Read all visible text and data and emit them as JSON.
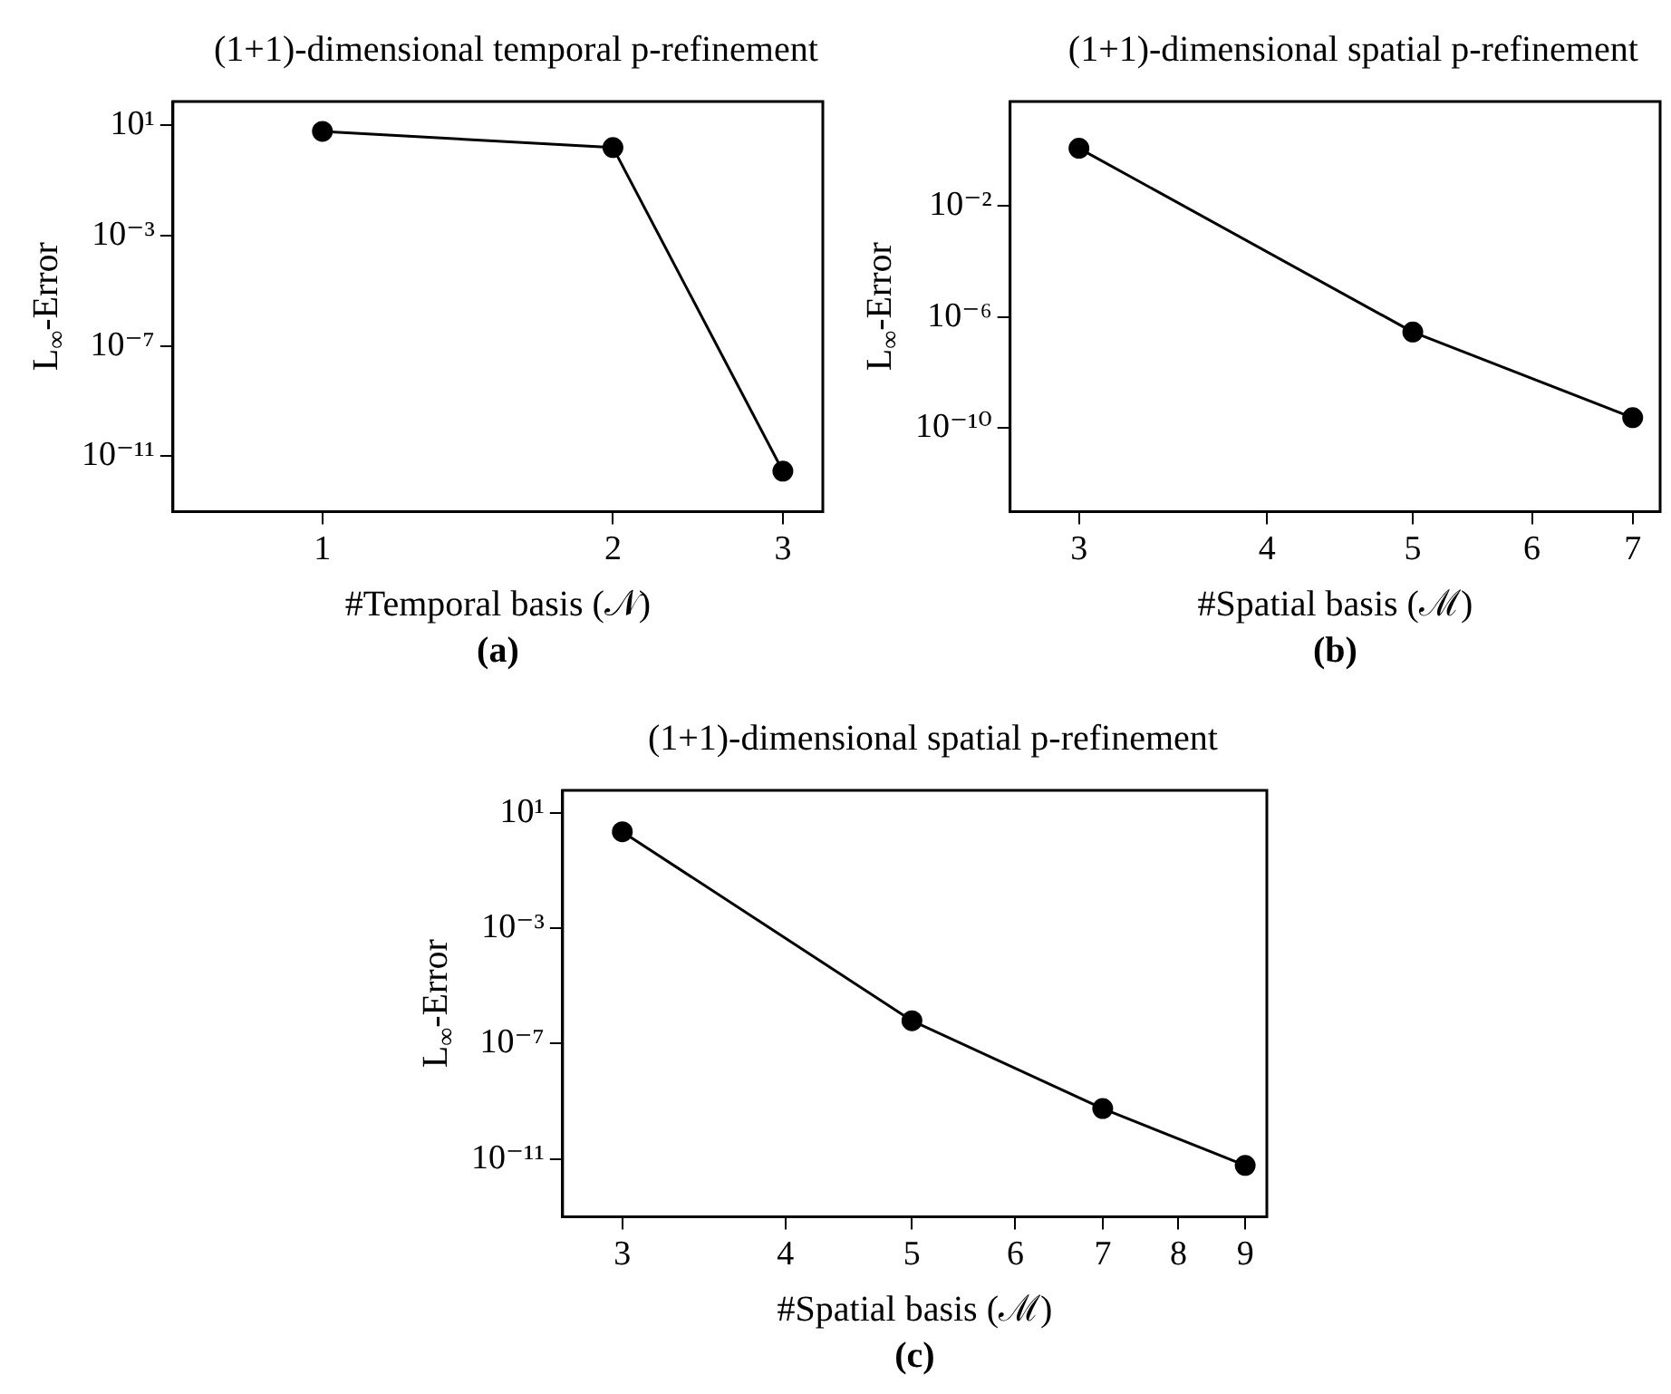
{
  "chart_data": [
    {
      "type": "line",
      "title": "(1+1)-dimensional temporal p-refinement",
      "xlabel": "#Temporal basis (𝒩)",
      "ylabel": "L$_{∞}$-Error",
      "annotations": [
        "(a)"
      ],
      "log": "xy",
      "grid": false,
      "legend": false,
      "marker": "circle",
      "line_style": "solid",
      "x": [
        1,
        2,
        3
      ],
      "series": [
        {
          "color": "#000000",
          "values": [
            5.8,
            1.5,
            2.9e-12
          ]
        }
      ],
      "xlim": [
        0.7,
        3.3
      ],
      "xticks": [
        1,
        2,
        3
      ],
      "ylim": [
        1e-13,
        70
      ],
      "yticks": [
        {
          "value": 10,
          "label": "10¹"
        },
        {
          "value": 0.001,
          "label": "10⁻³"
        },
        {
          "value": 1e-07,
          "label": "10⁻⁷"
        },
        {
          "value": 1e-11,
          "label": "10⁻¹¹"
        }
      ]
    },
    {
      "type": "line",
      "title": "(1+1)-dimensional spatial p-refinement",
      "xlabel": "#Spatial basis (ℳ)",
      "ylabel": "L$_{∞}$-Error",
      "annotations": [
        "(b)"
      ],
      "log": "xy",
      "grid": false,
      "legend": false,
      "marker": "circle",
      "line_style": "solid",
      "x": [
        3,
        5,
        7
      ],
      "series": [
        {
          "color": "#000000",
          "values": [
            1.2,
            2.9e-07,
            2.4e-10
          ]
        }
      ],
      "xlim": [
        2.7,
        7.3
      ],
      "xticks": [
        3,
        4,
        5,
        6,
        7
      ],
      "ylim": [
        1e-13,
        58
      ],
      "yticks": [
        {
          "value": 0.01,
          "label": "10⁻²"
        },
        {
          "value": 1e-06,
          "label": "10⁻⁶"
        },
        {
          "value": 1e-10,
          "label": "10⁻¹⁰"
        }
      ]
    },
    {
      "type": "line",
      "title": "(1+1)-dimensional spatial p-refinement",
      "xlabel": "#Spatial basis (ℳ)",
      "ylabel": "L$_{∞}$-Error",
      "annotations": [
        "(c)"
      ],
      "log": "xy",
      "grid": false,
      "legend": false,
      "marker": "circle",
      "line_style": "solid",
      "x": [
        3,
        5,
        7,
        9
      ],
      "series": [
        {
          "color": "#000000",
          "values": [
            2.2,
            6.2e-07,
            5.6e-10,
            6e-12
          ]
        }
      ],
      "xlim": [
        2.7,
        9.35
      ],
      "xticks": [
        3,
        4,
        5,
        6,
        7,
        8,
        9
      ],
      "ylim": [
        1e-13,
        60
      ],
      "yticks": [
        {
          "value": 10,
          "label": "10¹"
        },
        {
          "value": 0.001,
          "label": "10⁻³"
        },
        {
          "value": 1e-07,
          "label": "10⁻⁷"
        },
        {
          "value": 1e-11,
          "label": "10⁻¹¹"
        }
      ]
    }
  ]
}
